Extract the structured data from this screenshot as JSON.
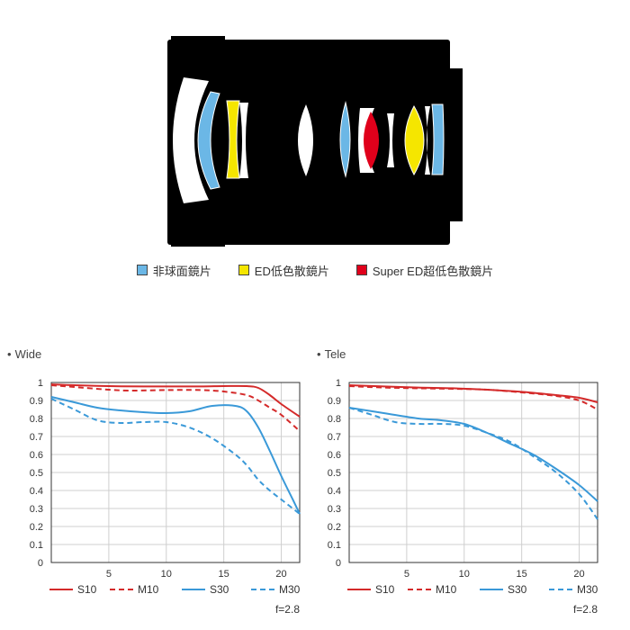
{
  "lens_legend": {
    "items": [
      {
        "label": "非球面鏡片",
        "color": "#6bb7e6"
      },
      {
        "label": "ED低色散鏡片",
        "color": "#f5e600"
      },
      {
        "label": "Super ED超低色散鏡片",
        "color": "#e0001b"
      }
    ]
  },
  "colors": {
    "red": "#d42a2a",
    "blue": "#3a99d8",
    "grid": "#cfcfcf",
    "axis": "#333333"
  },
  "chart_data": [
    {
      "type": "line",
      "title": "Wide",
      "aperture": "f=2.8",
      "xlim": [
        0,
        21.6
      ],
      "ylim": [
        0,
        1
      ],
      "x_ticks": [
        5,
        10,
        15,
        20
      ],
      "y_ticks": [
        "0",
        "0.1",
        "0.2",
        "0.3",
        "0.4",
        "0.5",
        "0.6",
        "0.7",
        "0.8",
        "0.9",
        "1"
      ],
      "grid": true,
      "legend_position": "bottom",
      "series": [
        {
          "name": "S10",
          "color": "red",
          "dash": false,
          "points": [
            [
              0,
              0.99
            ],
            [
              2,
              0.985
            ],
            [
              5,
              0.98
            ],
            [
              8,
              0.978
            ],
            [
              10,
              0.978
            ],
            [
              13,
              0.978
            ],
            [
              15,
              0.98
            ],
            [
              17,
              0.98
            ],
            [
              18,
              0.97
            ],
            [
              19,
              0.93
            ],
            [
              20,
              0.88
            ],
            [
              21.6,
              0.81
            ]
          ]
        },
        {
          "name": "M10",
          "color": "red",
          "dash": true,
          "points": [
            [
              0,
              0.985
            ],
            [
              2,
              0.975
            ],
            [
              5,
              0.96
            ],
            [
              7,
              0.955
            ],
            [
              10,
              0.958
            ],
            [
              13,
              0.958
            ],
            [
              15,
              0.95
            ],
            [
              17,
              0.93
            ],
            [
              18,
              0.9
            ],
            [
              19,
              0.86
            ],
            [
              20,
              0.82
            ],
            [
              21.6,
              0.73
            ]
          ]
        },
        {
          "name": "S30",
          "color": "blue",
          "dash": false,
          "points": [
            [
              0,
              0.92
            ],
            [
              2,
              0.89
            ],
            [
              4,
              0.86
            ],
            [
              6,
              0.845
            ],
            [
              8,
              0.835
            ],
            [
              10,
              0.83
            ],
            [
              12,
              0.84
            ],
            [
              14,
              0.87
            ],
            [
              16,
              0.87
            ],
            [
              17,
              0.84
            ],
            [
              18,
              0.75
            ],
            [
              19,
              0.62
            ],
            [
              20,
              0.48
            ],
            [
              21,
              0.35
            ],
            [
              21.6,
              0.27
            ]
          ]
        },
        {
          "name": "M30",
          "color": "blue",
          "dash": true,
          "points": [
            [
              0,
              0.91
            ],
            [
              2,
              0.85
            ],
            [
              4,
              0.79
            ],
            [
              6,
              0.775
            ],
            [
              8,
              0.78
            ],
            [
              10,
              0.78
            ],
            [
              12,
              0.75
            ],
            [
              14,
              0.69
            ],
            [
              16,
              0.6
            ],
            [
              17,
              0.54
            ],
            [
              18,
              0.46
            ],
            [
              19,
              0.4
            ],
            [
              20,
              0.35
            ],
            [
              21,
              0.3
            ],
            [
              21.6,
              0.27
            ]
          ]
        }
      ]
    },
    {
      "type": "line",
      "title": "Tele",
      "aperture": "f=2.8",
      "xlim": [
        0,
        21.6
      ],
      "ylim": [
        0,
        1
      ],
      "x_ticks": [
        5,
        10,
        15,
        20
      ],
      "y_ticks": [
        "0",
        "0.1",
        "0.2",
        "0.3",
        "0.4",
        "0.5",
        "0.6",
        "0.7",
        "0.8",
        "0.9",
        "1"
      ],
      "grid": true,
      "legend_position": "bottom",
      "series": [
        {
          "name": "S10",
          "color": "red",
          "dash": false,
          "points": [
            [
              0,
              0.985
            ],
            [
              3,
              0.978
            ],
            [
              6,
              0.972
            ],
            [
              9,
              0.968
            ],
            [
              12,
              0.96
            ],
            [
              15,
              0.948
            ],
            [
              18,
              0.93
            ],
            [
              20,
              0.915
            ],
            [
              21.6,
              0.89
            ]
          ]
        },
        {
          "name": "M10",
          "color": "red",
          "dash": true,
          "points": [
            [
              0,
              0.98
            ],
            [
              3,
              0.972
            ],
            [
              6,
              0.968
            ],
            [
              9,
              0.965
            ],
            [
              12,
              0.96
            ],
            [
              15,
              0.945
            ],
            [
              18,
              0.925
            ],
            [
              20,
              0.9
            ],
            [
              21.6,
              0.85
            ]
          ]
        },
        {
          "name": "S30",
          "color": "blue",
          "dash": false,
          "points": [
            [
              0,
              0.86
            ],
            [
              3,
              0.83
            ],
            [
              6,
              0.8
            ],
            [
              8,
              0.79
            ],
            [
              10,
              0.77
            ],
            [
              12,
              0.72
            ],
            [
              14,
              0.66
            ],
            [
              16,
              0.6
            ],
            [
              18,
              0.52
            ],
            [
              20,
              0.43
            ],
            [
              21.6,
              0.34
            ]
          ]
        },
        {
          "name": "M30",
          "color": "blue",
          "dash": true,
          "points": [
            [
              0,
              0.86
            ],
            [
              2,
              0.82
            ],
            [
              4,
              0.78
            ],
            [
              6,
              0.77
            ],
            [
              8,
              0.77
            ],
            [
              10,
              0.76
            ],
            [
              12,
              0.72
            ],
            [
              14,
              0.67
            ],
            [
              16,
              0.59
            ],
            [
              18,
              0.5
            ],
            [
              20,
              0.38
            ],
            [
              21.6,
              0.24
            ]
          ]
        }
      ]
    }
  ]
}
